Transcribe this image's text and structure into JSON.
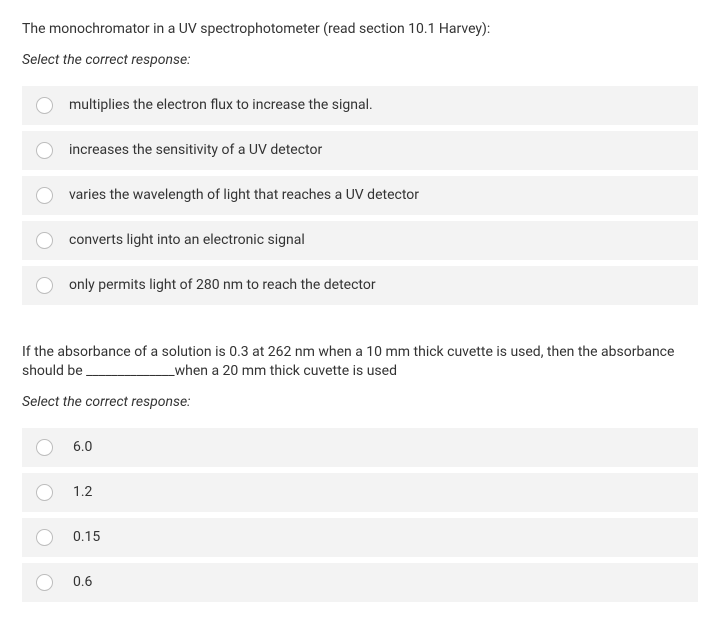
{
  "question1": {
    "prompt": "The monochromator in a UV spectrophotometer (read section 10.1 Harvey):",
    "instruction": "Select the correct response:",
    "options": [
      "multiplies the electron flux to increase the signal.",
      "increases the sensitivity of a UV detector",
      "varies the wavelength of light that reaches a UV detector",
      "converts light into an electronic signal",
      "only permits light of 280 nm to reach the detector"
    ]
  },
  "question2": {
    "prompt": "If the absorbance of a solution is 0.3 at 262 nm when a 10 mm thick cuvette is used, then the absorbance should be ______________when a 20 mm thick cuvette is used",
    "instruction": "Select the correct response:",
    "options": [
      "6.0",
      "1.2",
      "0.15",
      "0.6"
    ]
  },
  "styles": {
    "option_bg": "#f3f3f3",
    "text_color": "#333333",
    "radio_border": "#bdbdbd",
    "page_bg": "#ffffff",
    "font_size_body": 14
  }
}
